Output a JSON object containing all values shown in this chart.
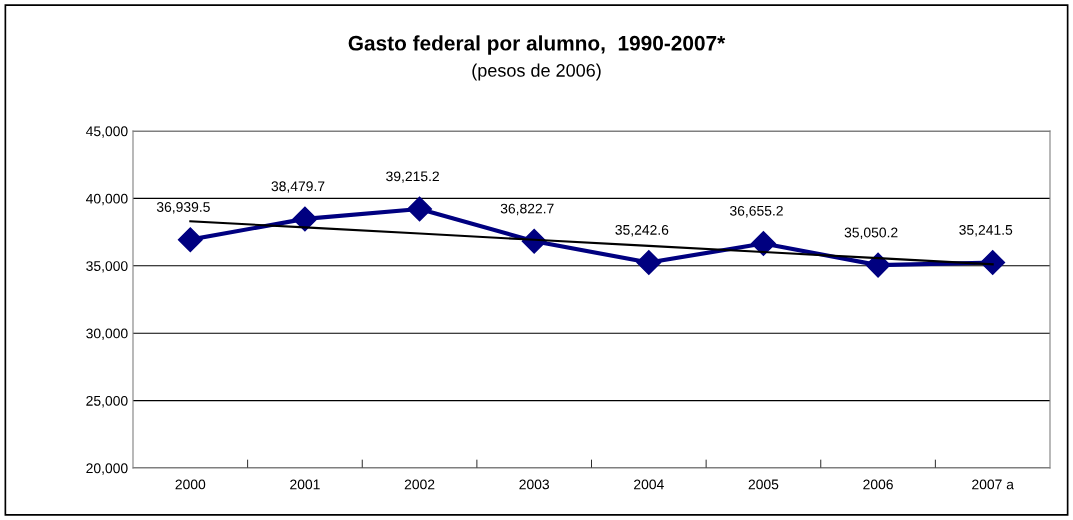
{
  "chart_data": {
    "type": "line",
    "title": "Gasto federal por alumno,  1990-2007*",
    "subtitle": "(pesos de 2006)",
    "categories": [
      "2000",
      "2001",
      "2002",
      "2003",
      "2004",
      "2005",
      "2006",
      "2007 a"
    ],
    "series": [
      {
        "color": "#000080",
        "values": [
          36939.5,
          38479.7,
          39215.2,
          36822.7,
          35242.6,
          36655.2,
          35050.2,
          35241.5
        ],
        "value_labels": [
          "36,939.5",
          "38,479.7",
          "39,215.2",
          "36,822.7",
          "35,242.6",
          "36,655.2",
          "35,050.2",
          "35,241.5"
        ],
        "marker": "diamond"
      },
      {
        "color": "#000000",
        "values": [
          38300,
          37850,
          37390,
          36930,
          36480,
          36020,
          35570,
          35110
        ],
        "marker": "none"
      }
    ],
    "ylim": [
      20000,
      45000
    ],
    "yticks": [
      {
        "value": 20000,
        "label": "20,000"
      },
      {
        "value": 25000,
        "label": "25,000"
      },
      {
        "value": 30000,
        "label": "30,000"
      },
      {
        "value": 35000,
        "label": "35,000"
      },
      {
        "value": 40000,
        "label": "40,000"
      },
      {
        "value": 45000,
        "label": "45,000"
      }
    ],
    "grid": "y",
    "legend": false,
    "line_style": "solid"
  }
}
